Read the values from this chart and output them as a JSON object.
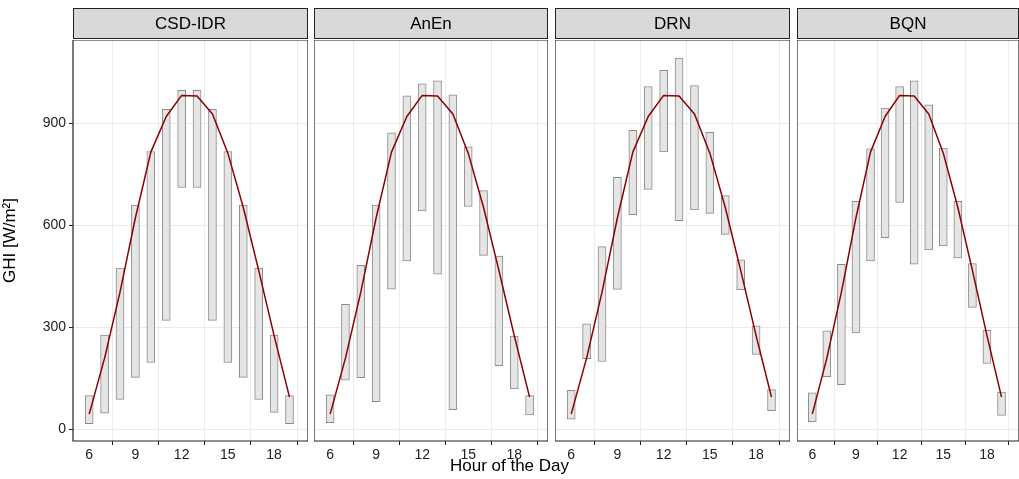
{
  "chart_data": [
    {
      "type": "bar",
      "title": "CSD-IDR",
      "ylabel": "GHI [W/m²]",
      "x": [
        6,
        7,
        8,
        9,
        10,
        11,
        12,
        13,
        14,
        15,
        16,
        17,
        18,
        19
      ],
      "xlim": [
        4.95,
        20.2
      ],
      "xticks": [
        6,
        9,
        12,
        15,
        18
      ],
      "ylim": [
        -35,
        1145
      ],
      "yticks": [
        0,
        300,
        600,
        900
      ],
      "grid": true,
      "legend": false,
      "series": [
        {
          "color": "#e5e5e5",
          "base": [
            16,
            47,
            87,
            152,
            196,
            320,
            711,
            711,
            320,
            196,
            152,
            87,
            49,
            16
          ],
          "values": [
            83,
            230,
            387,
            507,
            621,
            621,
            286,
            286,
            621,
            621,
            507,
            387,
            228,
            83
          ]
        },
        {
          "type": "line",
          "color": "#8b0000",
          "values": [
            44,
            209,
            403,
            622,
            815,
            920,
            982,
            980,
            927,
            812,
            652,
            467,
            275,
            94
          ]
        }
      ]
    },
    {
      "type": "bar",
      "title": "AnEn",
      "xlabel": "Hour of the Day",
      "x": [
        6,
        7,
        8,
        9,
        10,
        11,
        12,
        13,
        14,
        15,
        16,
        17,
        18,
        19
      ],
      "xlim": [
        4.95,
        20.2
      ],
      "xticks": [
        6,
        9,
        12,
        15,
        18
      ],
      "ylim": [
        -35,
        1145
      ],
      "yticks": [
        0,
        300,
        600,
        900
      ],
      "grid": true,
      "legend": false,
      "tick_labels": "x",
      "series": [
        {
          "color": "#e5e5e5",
          "base": [
            19,
            144,
            151,
            81,
            412,
            495,
            642,
            456,
            57,
            655,
            511,
            187,
            118,
            42
          ],
          "values": [
            82,
            223,
            331,
            578,
            460,
            486,
            374,
            569,
            927,
            176,
            191,
            322,
            156,
            57
          ]
        },
        {
          "type": "line",
          "color": "#8b0000",
          "values": [
            44,
            209,
            403,
            622,
            815,
            920,
            982,
            980,
            927,
            812,
            652,
            467,
            275,
            94
          ]
        }
      ]
    },
    {
      "type": "bar",
      "title": "DRN",
      "x": [
        6,
        7,
        8,
        9,
        10,
        11,
        12,
        13,
        14,
        15,
        16,
        17,
        18,
        19
      ],
      "xlim": [
        4.95,
        20.2
      ],
      "xticks": [
        6,
        9,
        12,
        15,
        18
      ],
      "ylim": [
        -35,
        1145
      ],
      "yticks": [
        0,
        300,
        600,
        900
      ],
      "grid": true,
      "legend": false,
      "tick_labels": "x",
      "series": [
        {
          "color": "#e5e5e5",
          "base": [
            29,
            207,
            199,
            411,
            631,
            705,
            816,
            613,
            645,
            635,
            573,
            410,
            220,
            54
          ],
          "values": [
            85,
            103,
            338,
            330,
            248,
            303,
            240,
            479,
            366,
            238,
            114,
            88,
            84,
            62
          ]
        },
        {
          "type": "line",
          "color": "#8b0000",
          "values": [
            44,
            209,
            403,
            622,
            815,
            920,
            982,
            980,
            927,
            812,
            652,
            467,
            275,
            94
          ]
        }
      ]
    },
    {
      "type": "bar",
      "title": "BQN",
      "x": [
        6,
        7,
        8,
        9,
        10,
        11,
        12,
        13,
        14,
        15,
        16,
        17,
        18,
        19
      ],
      "xlim": [
        4.95,
        20.2
      ],
      "xticks": [
        6,
        9,
        12,
        15,
        18
      ],
      "ylim": [
        -35,
        1145
      ],
      "yticks": [
        0,
        300,
        600,
        900
      ],
      "grid": true,
      "legend": false,
      "tick_labels": "x",
      "series": [
        {
          "color": "#e5e5e5",
          "base": [
            22,
            154,
            131,
            283,
            495,
            563,
            667,
            485,
            527,
            539,
            504,
            358,
            193,
            40
          ],
          "values": [
            85,
            135,
            354,
            387,
            330,
            382,
            341,
            540,
            427,
            288,
            166,
            129,
            98,
            69
          ]
        },
        {
          "type": "line",
          "color": "#8b0000",
          "values": [
            44,
            209,
            403,
            622,
            815,
            920,
            982,
            980,
            927,
            812,
            652,
            467,
            275,
            94
          ]
        }
      ]
    }
  ]
}
